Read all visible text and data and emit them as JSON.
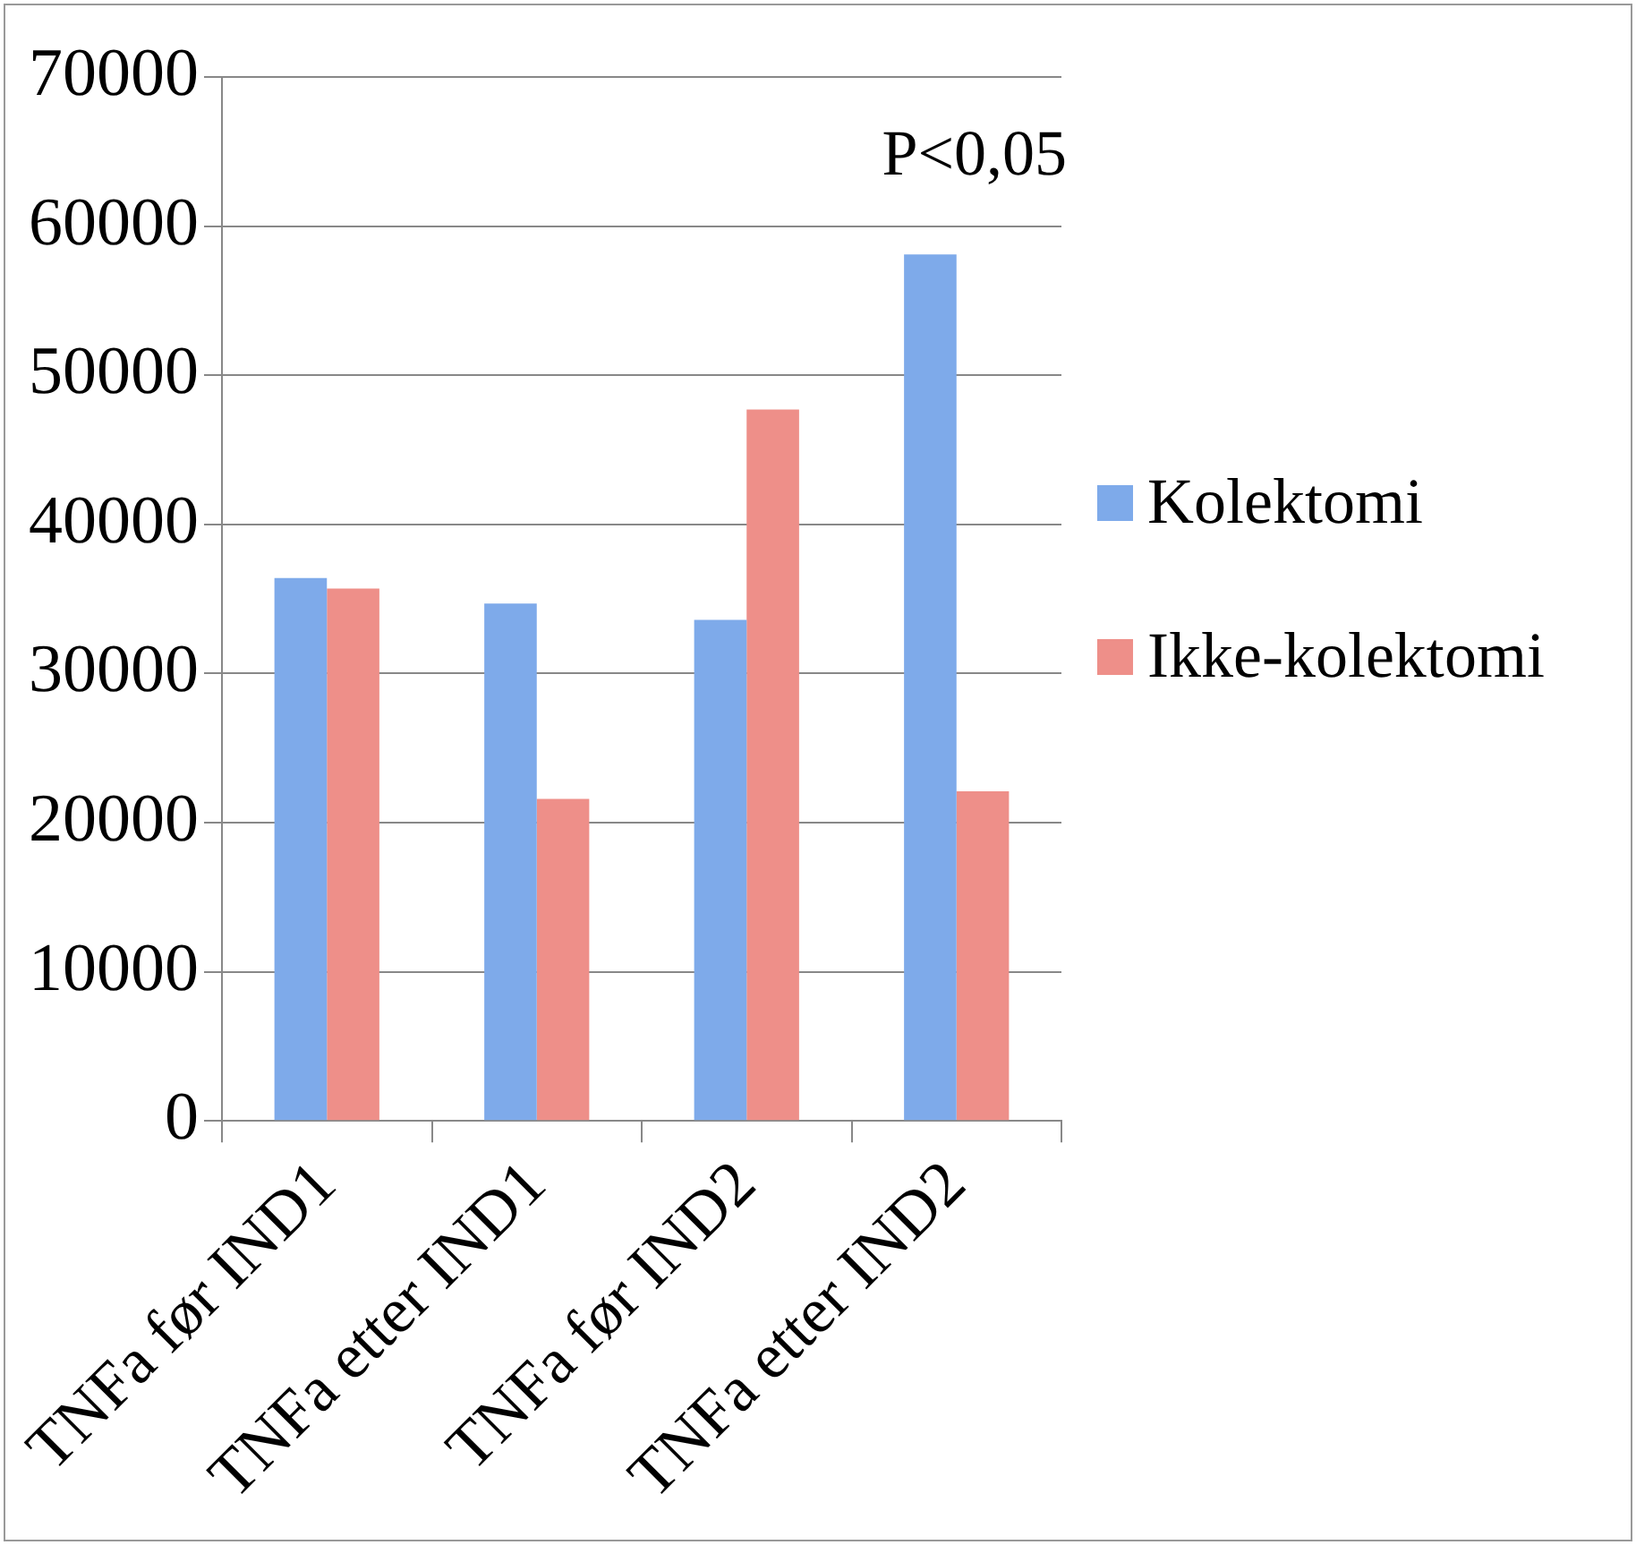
{
  "chart_data": {
    "type": "bar",
    "categories": [
      "TNFa før IND1",
      "TNFa etter IND1",
      "TNFa før IND2",
      "TNFa etter IND2"
    ],
    "series": [
      {
        "name": "Kolektomi",
        "color": "#7eaaea",
        "values": [
          36400,
          34700,
          33600,
          58100
        ]
      },
      {
        "name": "Ikke-kolektomi",
        "color": "#ee8f89",
        "values": [
          35700,
          21600,
          47700,
          22100
        ]
      }
    ],
    "ylim": [
      0,
      70000
    ],
    "yticks": [
      0,
      10000,
      20000,
      30000,
      40000,
      50000,
      60000,
      70000
    ],
    "grid": "y",
    "legend": "right",
    "annotations": [
      "P<0,05"
    ]
  }
}
